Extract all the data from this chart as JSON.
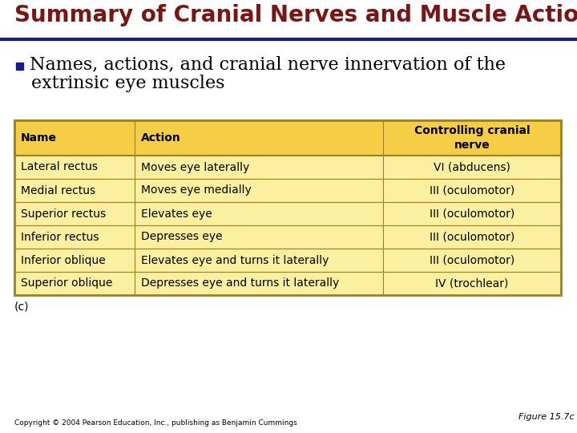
{
  "title": "Summary of Cranial Nerves and Muscle Actions",
  "title_color": "#7B1515",
  "separator_color": "#1A1A8C",
  "bullet_text_line1": "Names, actions, and cranial nerve innervation of the",
  "bullet_text_line2": "extrinsic eye muscles",
  "bullet_color": "#1A1A8C",
  "table_header": [
    "Name",
    "Action",
    "Controlling cranial\nnerve"
  ],
  "table_rows": [
    [
      "Lateral rectus",
      "Moves eye laterally",
      "VI (abducens)"
    ],
    [
      "Medial rectus",
      "Moves eye medially",
      "III (oculomotor)"
    ],
    [
      "Superior rectus",
      "Elevates eye",
      "III (oculomotor)"
    ],
    [
      "Inferior rectus",
      "Depresses eye",
      "III (oculomotor)"
    ],
    [
      "Inferior oblique",
      "Elevates eye and turns it laterally",
      "III (oculomotor)"
    ],
    [
      "Superior oblique",
      "Depresses eye and turns it laterally",
      "IV (trochlear)"
    ]
  ],
  "table_header_bg": "#F5CE45",
  "table_row_bg": "#FAF0A0",
  "table_border_color": "#A08020",
  "label_c": "(c)",
  "figure_label": "Figure 15.7c",
  "copyright": "Copyright © 2004 Pearson Education, Inc., publishing as Benjamin Cummings",
  "bg_color": "#FFFFFF",
  "title_fontsize": 20,
  "bullet_fontsize": 16,
  "table_header_fontsize": 10,
  "table_row_fontsize": 10
}
